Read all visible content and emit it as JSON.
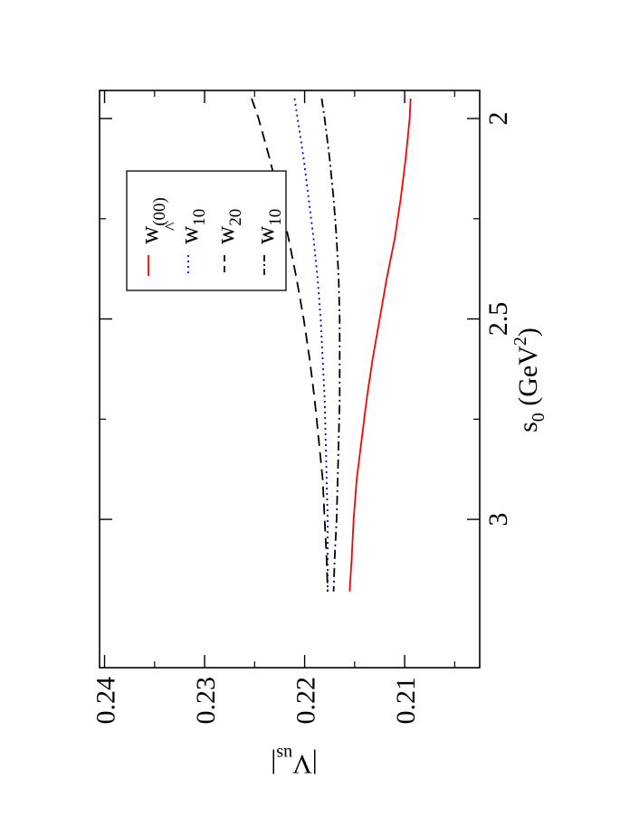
{
  "chart_data": {
    "type": "line",
    "orientation": "rotated-90-cw",
    "title": "",
    "xlabel": {
      "main": "s",
      "sub": "0",
      "unit": " (GeV",
      "sup": "2",
      "close": ")"
    },
    "ylabel": {
      "main": "|V",
      "sub": "us",
      "close": "|"
    },
    "xlim": [
      1.93,
      3.37
    ],
    "ylim": [
      0.2025,
      0.2405
    ],
    "xticks": [
      2,
      2.5,
      3
    ],
    "xtick_labels": [
      "2",
      "2.5",
      "3"
    ],
    "yticks": [
      0.21,
      0.22,
      0.23,
      0.24
    ],
    "ytick_labels": [
      "0.21",
      "0.22",
      "0.23",
      "0.24"
    ],
    "grid": false,
    "legend_position": "top-right",
    "series": [
      {
        "name": "w",
        "label_sub": "(00)",
        "label_hat": "",
        "color": "#ff0000",
        "dash": "",
        "x": [
          1.95,
          2.0,
          2.1,
          2.2,
          2.3,
          2.4,
          2.5,
          2.6,
          2.7,
          2.8,
          2.9,
          3.0,
          3.1,
          3.18
        ],
        "y": [
          0.2094,
          0.2095,
          0.2099,
          0.2104,
          0.211,
          0.2118,
          0.2125,
          0.2132,
          0.2138,
          0.2143,
          0.2148,
          0.2151,
          0.2153,
          0.2155
        ]
      },
      {
        "name": "w",
        "label_sub": "10",
        "label_hat": "^",
        "color": "#0000ff",
        "dash": "2 4",
        "x": [
          1.95,
          2.0,
          2.1,
          2.2,
          2.3,
          2.4,
          2.5,
          2.6,
          2.7,
          2.8,
          2.9,
          3.0,
          3.1,
          3.18
        ],
        "y": [
          0.221,
          0.2207,
          0.2201,
          0.2196,
          0.2191,
          0.2187,
          0.2184,
          0.2182,
          0.218,
          0.2179,
          0.2178,
          0.2177,
          0.2177,
          0.2177
        ]
      },
      {
        "name": "w",
        "label_sub": "20",
        "label_hat": "",
        "color": "#000000",
        "dash": "12 7",
        "x": [
          1.95,
          2.0,
          2.1,
          2.2,
          2.3,
          2.4,
          2.5,
          2.6,
          2.7,
          2.8,
          2.9,
          3.0,
          3.1,
          3.18
        ],
        "y": [
          0.2253,
          0.2246,
          0.2235,
          0.2225,
          0.2216,
          0.2208,
          0.2201,
          0.2195,
          0.219,
          0.2186,
          0.2182,
          0.218,
          0.2178,
          0.2177
        ]
      },
      {
        "name": "w",
        "label_sub": "10",
        "label_hat": "",
        "color": "#000000",
        "dash": "10 4 2 4",
        "x": [
          1.95,
          2.0,
          2.1,
          2.2,
          2.3,
          2.4,
          2.5,
          2.6,
          2.7,
          2.8,
          2.9,
          3.0,
          3.1,
          3.18
        ],
        "y": [
          0.2183,
          0.218,
          0.2175,
          0.2171,
          0.2168,
          0.2166,
          0.2165,
          0.2165,
          0.2165,
          0.2166,
          0.2167,
          0.2168,
          0.217,
          0.2171
        ]
      }
    ]
  }
}
